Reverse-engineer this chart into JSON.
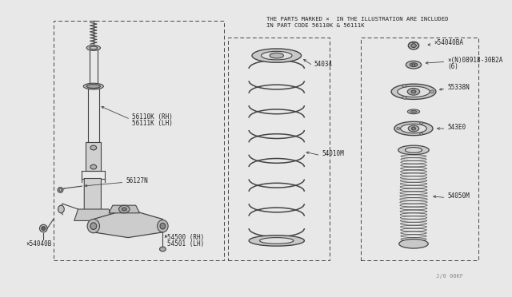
{
  "bg_color": "#e8e8e8",
  "line_color": "#444444",
  "text_color": "#222222",
  "note_line1": "THE PARTS MARKED ×  IN THE ILLUSTRATION ARE INCLUDED",
  "note_line2": "IN PART CODE 56110K & 56111K",
  "watermark": "J/0 00KF",
  "parts": {
    "strut_label1": "56110K (RH)",
    "strut_label2": "56111K (LH)",
    "strut_part": "56127N",
    "lower_arm1": "54500 (RH)",
    "lower_arm2": "54501 (LH)",
    "bolt_left": "×54040B",
    "spring_top": "54034",
    "coil_spring": "54010M",
    "bump_stop": "54050M",
    "top_mount_nut": "×54040BA",
    "bearing_label1": "×(N)08918-30B2A",
    "bearing_label2": "(6)",
    "strut_mount": "55338N",
    "spring_seat": "543E0"
  }
}
